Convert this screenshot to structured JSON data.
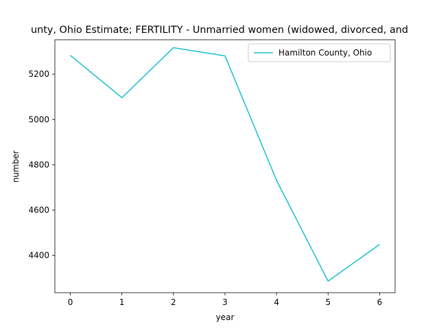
{
  "chart_data": {
    "type": "line",
    "title": "unty, Ohio Estimate; FERTILITY - Unmarried women (widowed, divorced, and",
    "xlabel": "year",
    "ylabel": "number",
    "x": [
      0,
      1,
      2,
      3,
      4,
      5,
      6
    ],
    "xticks": [
      "0",
      "1",
      "2",
      "3",
      "4",
      "5",
      "6"
    ],
    "yticks": [
      4400,
      4600,
      4800,
      5000,
      5200
    ],
    "ytick_labels": [
      "4400",
      "4600",
      "4800",
      "5000",
      "5200"
    ],
    "xlim": [
      -0.3,
      6.3
    ],
    "ylim": [
      4235,
      5352
    ],
    "grid": false,
    "legend_position": "top-right",
    "series": [
      {
        "name": "Hamilton County, Ohio",
        "color": "#17becf",
        "values": [
          5283,
          5096,
          5317,
          5281,
          4731,
          4286,
          4448
        ]
      }
    ]
  }
}
